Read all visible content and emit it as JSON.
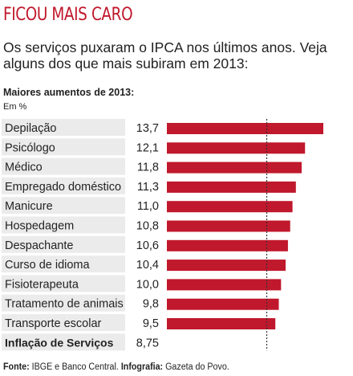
{
  "header": {
    "title": "FICOU MAIS CARO",
    "subtitle": "Os serviços puxaram o IPCA nos últimos anos. Veja alguns dos que mais subiram em 2013:"
  },
  "footer": {
    "source_label": "Fonte:",
    "source_text": " IBGE e Banco Central. ",
    "credit_label": "Infografia:",
    "credit_text": " Gazeta do Povo."
  },
  "colors": {
    "title": "#c0182c",
    "bar": "#c0182c",
    "row_band": "#ebebeb",
    "text": "#222222"
  },
  "chart_data": {
    "type": "bar",
    "orientation": "horizontal",
    "title": "Maiores aumentos de 2013:",
    "unit_label": "Em %",
    "categories": [
      "Depilação",
      "Psicólogo",
      "Médico",
      "Empregado doméstico",
      "Manicure",
      "Hospedagem",
      "Despachante",
      "Curso de idioma",
      "Fisioterapeuta",
      "Tratamento de animais",
      "Transporte escolar",
      "Inflação de Serviços"
    ],
    "values": [
      13.7,
      12.1,
      11.8,
      11.3,
      11.0,
      10.8,
      10.6,
      10.4,
      10.0,
      9.8,
      9.5,
      8.75
    ],
    "value_labels": [
      "13,7",
      "12,1",
      "11,8",
      "11,3",
      "11,0",
      "10,8",
      "10,6",
      "10,4",
      "10,0",
      "9,8",
      "9,5",
      "8,75"
    ],
    "reference_line": {
      "value": 8.75,
      "style": "dashed"
    },
    "grid": false,
    "legend": "none"
  }
}
